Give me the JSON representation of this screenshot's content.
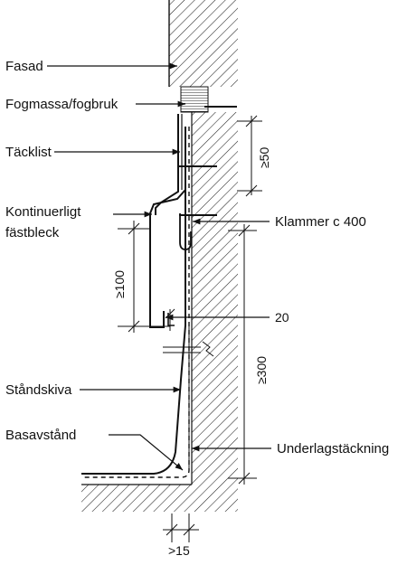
{
  "labels": {
    "fasad": "Fasad",
    "fogmassa": "Fogmassa/fogbruk",
    "tacklist": "Täcklist",
    "kontinuerligt_1": "Kontinuerligt",
    "kontinuerligt_2": "fästbleck",
    "klammer": "Klammer c 400",
    "standskiva": "Ståndskiva",
    "basavstand": "Basavstånd",
    "underlag": "Underlagstäckning"
  },
  "dimensions": {
    "d50": "≥50",
    "d100": "≥100",
    "d20": "20",
    "d300": "≥300",
    "d15": ">15"
  },
  "colors": {
    "ink": "#111111",
    "background": "#ffffff"
  }
}
